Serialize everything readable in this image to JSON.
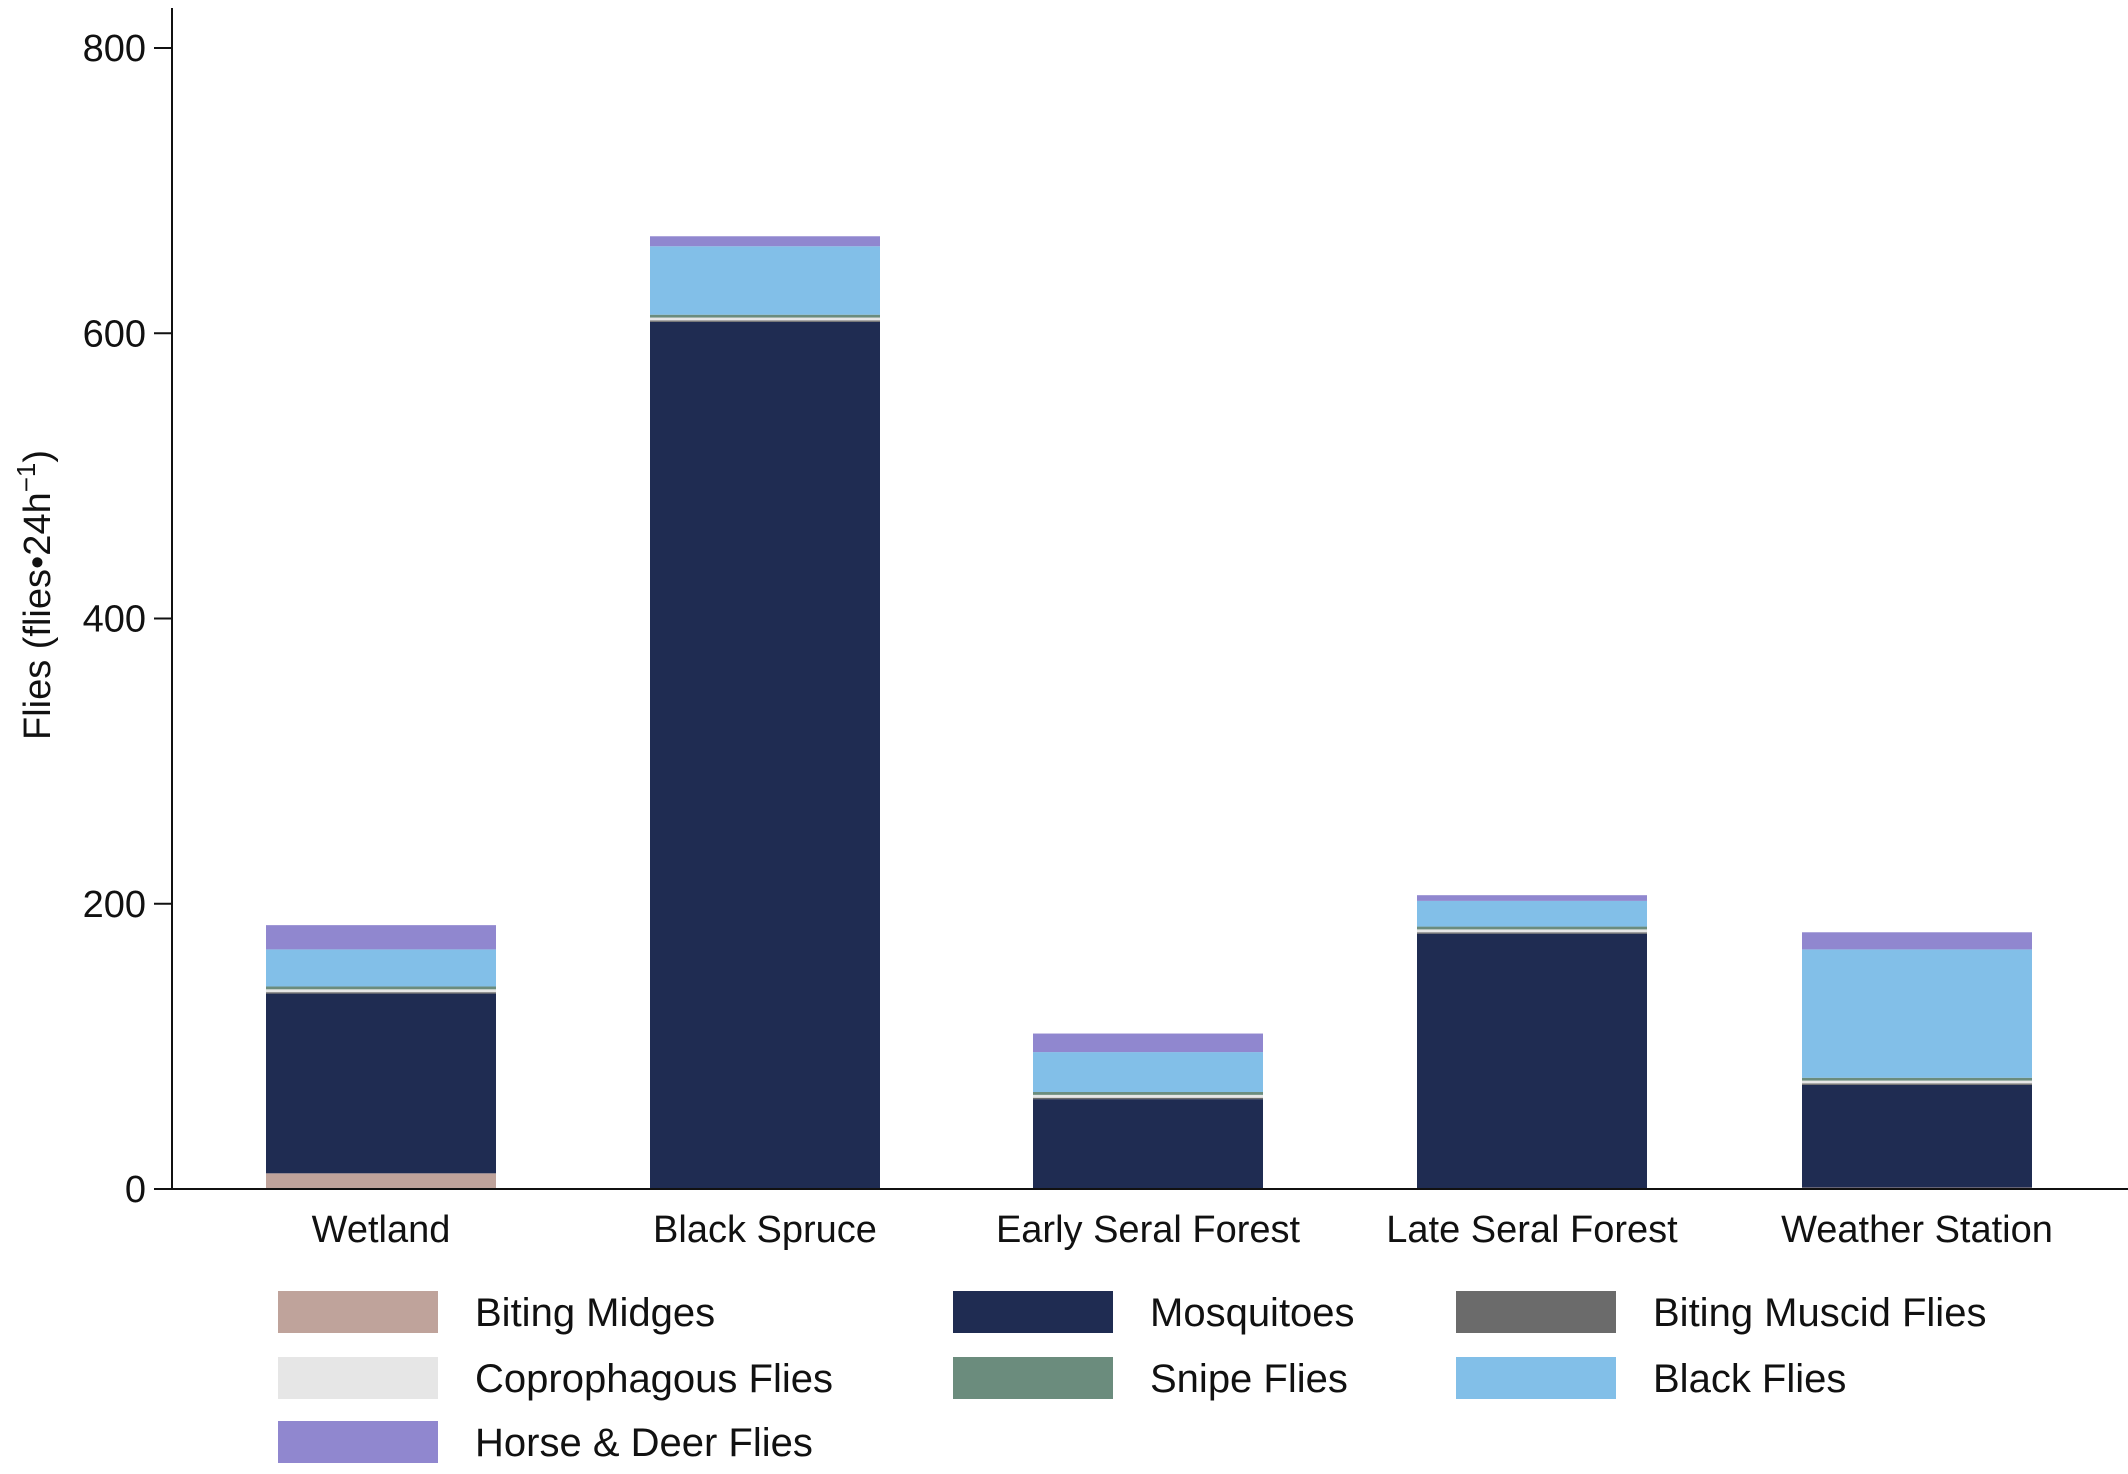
{
  "chart_data": {
    "type": "bar",
    "stacked": true,
    "title": "",
    "xlabel": "",
    "ylabel": "Flies (flies•24h",
    "ylabel_superscript": "−1",
    "ylabel_close": ")",
    "ylim": [
      0,
      820
    ],
    "yticks": [
      0,
      200,
      400,
      600,
      800
    ],
    "grid": false,
    "legend_position": "bottom",
    "categories": [
      "Wetland",
      "Black Spruce",
      "Early Seral Forest",
      "Late Seral Forest",
      "Weather Station"
    ],
    "series": [
      {
        "name": "Biting Midges",
        "color": "#bfa39b",
        "values": [
          11,
          0,
          0,
          0,
          1
        ]
      },
      {
        "name": "Mosquitoes",
        "color": "#1f2c52",
        "values": [
          126,
          608,
          63,
          179,
          72
        ]
      },
      {
        "name": "Biting Muscid Flies",
        "color": "#6b6b6b",
        "values": [
          1,
          1,
          1,
          1,
          1
        ]
      },
      {
        "name": "Coprophagous Flies",
        "color": "#e6e6e6",
        "values": [
          2,
          2,
          2,
          2,
          2
        ]
      },
      {
        "name": "Snipe Flies",
        "color": "#6b8c7d",
        "values": [
          2,
          2,
          2,
          2,
          2
        ]
      },
      {
        "name": "Black Flies",
        "color": "#82bfe8",
        "values": [
          26,
          48,
          28,
          18,
          90
        ]
      },
      {
        "name": "Horse & Deer Flies",
        "color": "#9087cf",
        "values": [
          17,
          7,
          13,
          4,
          12
        ]
      }
    ],
    "legend_order": [
      "Biting Midges",
      "Mosquitoes",
      "Biting Muscid Flies",
      "Coprophagous Flies",
      "Snipe Flies",
      "Black Flies",
      "Horse & Deer Flies"
    ]
  }
}
